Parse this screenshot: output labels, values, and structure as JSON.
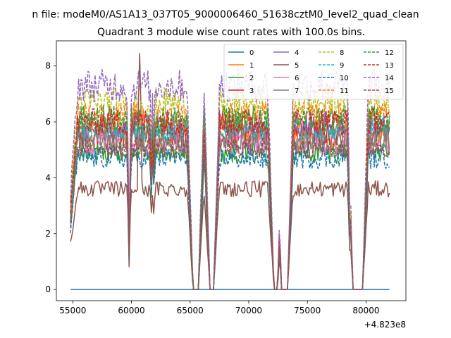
{
  "suptitle": "n file: modeM0/AS1A13_037T05_9000006460_51638cztM0_level2_quad_clean",
  "chart_data": {
    "type": "line",
    "title": "Quadrant 3 module wise count rates with 100.0s bins.",
    "xlabel": "",
    "ylabel": "",
    "offset_label": "+4.823e8",
    "xlim": [
      53600,
      83400
    ],
    "ylim": [
      -0.4,
      8.9
    ],
    "x_ticks": [
      55000,
      60000,
      65000,
      70000,
      75000,
      80000
    ],
    "x_tick_labels": [
      "55000",
      "60000",
      "65000",
      "70000",
      "75000",
      "80000"
    ],
    "y_ticks": [
      0,
      2,
      4,
      6,
      8
    ],
    "y_tick_labels": [
      "0",
      "2",
      "4",
      "6",
      "8"
    ],
    "x_range": [
      54800,
      82000
    ],
    "bin_seconds": 100,
    "gaps": [
      [
        65250,
        65700
      ],
      [
        66700,
        67000
      ],
      [
        72150,
        72450
      ],
      [
        72800,
        73300
      ],
      [
        78900,
        79700
      ]
    ],
    "dips": [
      [
        59800,
        1.3
      ],
      [
        61700,
        4.0
      ],
      [
        61900,
        4.3
      ],
      [
        78600,
        2.2
      ]
    ],
    "peak": [
      60700,
      8.45
    ],
    "legend": {
      "position": "top-right",
      "columns": 4
    },
    "series": [
      {
        "name": "0",
        "color": "#1f77b4",
        "style": "solid",
        "level": 0.0
      },
      {
        "name": "1",
        "color": "#ff7f0e",
        "style": "solid",
        "level": 5.5
      },
      {
        "name": "2",
        "color": "#2ca02c",
        "style": "solid",
        "level": 4.9
      },
      {
        "name": "3",
        "color": "#d62728",
        "style": "solid",
        "level": 5.6
      },
      {
        "name": "4",
        "color": "#9467bd",
        "style": "solid",
        "level": 5.9
      },
      {
        "name": "5",
        "color": "#8c564b",
        "style": "solid",
        "level": 3.6
      },
      {
        "name": "6",
        "color": "#e377c2",
        "style": "solid",
        "level": 5.2
      },
      {
        "name": "7",
        "color": "#7f7f7f",
        "style": "solid",
        "level": 5.4
      },
      {
        "name": "8",
        "color": "#bcbd22",
        "style": "dashed",
        "level": 6.7
      },
      {
        "name": "9",
        "color": "#17becf",
        "style": "dashed",
        "level": 5.8
      },
      {
        "name": "10",
        "color": "#1f77b4",
        "style": "dashed",
        "level": 4.7
      },
      {
        "name": "11",
        "color": "#ff7f0e",
        "style": "dashed",
        "level": 6.2
      },
      {
        "name": "12",
        "color": "#2ca02c",
        "style": "dashed",
        "level": 6.1
      },
      {
        "name": "13",
        "color": "#d62728",
        "style": "dashed",
        "level": 6.0
      },
      {
        "name": "14",
        "color": "#9467bd",
        "style": "dashed",
        "level": 7.3
      },
      {
        "name": "15",
        "color": "#8c564b",
        "style": "dashed",
        "level": 5.1
      }
    ]
  }
}
